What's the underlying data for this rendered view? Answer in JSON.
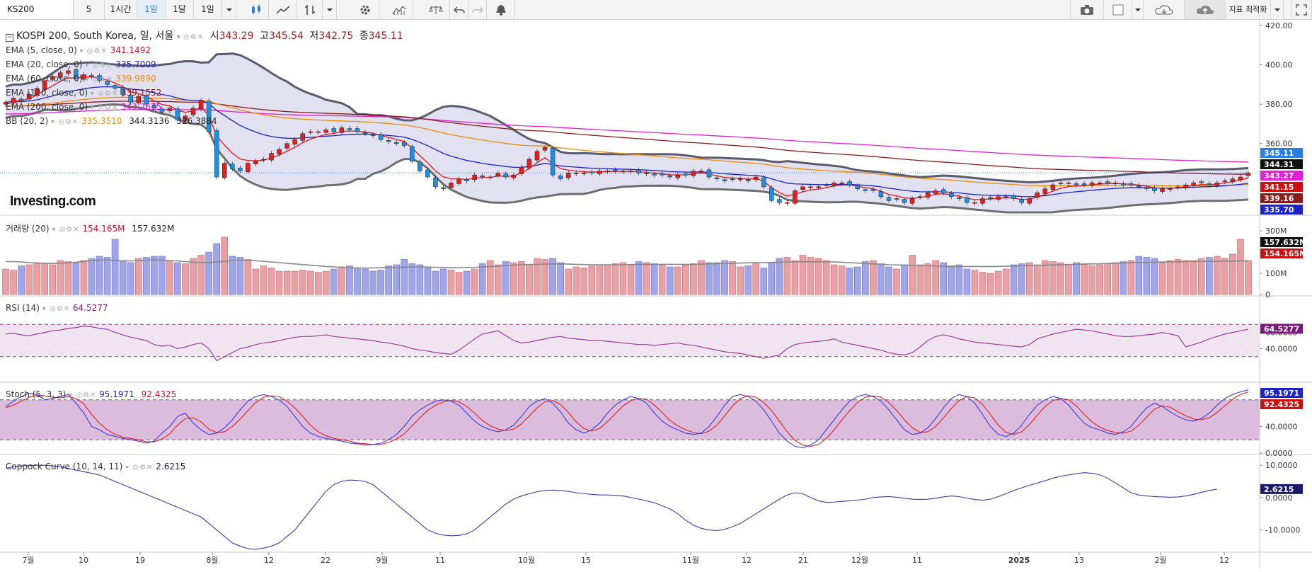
{
  "toolbar": {
    "symbol": "KS200",
    "interval_5": "5",
    "interval_1h": "1시간",
    "interval_1d": "1일",
    "interval_1mo": "1달",
    "interval_1d_b": "1일",
    "indicator_optimize": "지표 최적화"
  },
  "title": {
    "name": "KOSPI 200, South Korea, 일, 서울",
    "open_label": "시",
    "open": "343.29",
    "high_label": "고",
    "high": "345.54",
    "low_label": "저",
    "low": "342.75",
    "close_label": "종",
    "close": "345.11"
  },
  "legend": {
    "ema5": {
      "label": "EMA (5, close, 0)",
      "value": "341.1492",
      "color": "#c8102e"
    },
    "ema20": {
      "label": "EMA (20, close, 0)",
      "value": "335.7009",
      "color": "#1a22c8"
    },
    "ema60": {
      "label": "EMA (60, close, 0)",
      "value": "339.9890",
      "color": "#f08a00"
    },
    "ema120": {
      "label": "EMA (120, close, 0)",
      "value": "339.1552",
      "color": "#8b1a1a"
    },
    "ema200": {
      "label": "EMA (200, close, 0)",
      "value": "343.2675",
      "color": "#d21bc8"
    },
    "bb": {
      "label": "BB (20, 2)",
      "v1": "335.3510",
      "v2": "344.3136",
      "v3": "326.3884"
    },
    "volume": {
      "label": "거래량 (20)",
      "v1": "154.165M",
      "v2": "157.632M"
    },
    "rsi": {
      "label": "RSI (14)",
      "value": "64.5277"
    },
    "stoch": {
      "label": "Stoch (5, 3, 3)",
      "k": "95.1971",
      "d": "92.4325"
    },
    "coppock": {
      "label": "Coppock Curve (10, 14, 11)",
      "value": "2.6215"
    }
  },
  "logo": "Investing.com",
  "axes": {
    "price_ticks": [
      "420.00",
      "400.00",
      "380.00",
      "360.00"
    ],
    "volume_ticks": [
      "300M",
      "100M",
      "0"
    ],
    "rsi_ticks": [
      "60.0000",
      "40.0000"
    ],
    "stoch_ticks": [
      "40.0000",
      "0.0000"
    ],
    "coppock_ticks": [
      "10.0000",
      "0.0000",
      "-10.0000"
    ],
    "x_labels": [
      "7월",
      "10",
      "19",
      "8월",
      "12",
      "22",
      "9월",
      "11",
      "10월",
      "15",
      "11월",
      "12",
      "21",
      "12월",
      "11",
      "2025",
      "13",
      "2월",
      "12"
    ]
  },
  "price_badges": [
    {
      "text": "345.11",
      "bg": "#2a7de1",
      "fg": "#ffffff"
    },
    {
      "text": "344.31",
      "bg": "#111111",
      "fg": "#ffffff"
    },
    {
      "text": "343.27",
      "bg": "#e020d8",
      "fg": "#ffffff"
    },
    {
      "text": "341.15",
      "bg": "#cc1010",
      "fg": "#ffffff"
    },
    {
      "text": "339.16",
      "bg": "#8b1a1a",
      "fg": "#ffffff"
    },
    {
      "text": "335.70",
      "bg": "#1a22c8",
      "fg": "#ffffff"
    }
  ],
  "volume_badges": [
    {
      "text": "157.632M",
      "bg": "#111111",
      "fg": "#ffffff"
    },
    {
      "text": "154.165M",
      "bg": "#cc1010",
      "fg": "#ffffff"
    }
  ],
  "rsi_badge": {
    "text": "64.5277",
    "bg": "#7b1a7b",
    "fg": "#ffffff"
  },
  "stoch_badges": [
    {
      "text": "95.1971",
      "bg": "#1a22c8",
      "fg": "#ffffff"
    },
    {
      "text": "92.4325",
      "bg": "#cc1010",
      "fg": "#ffffff"
    }
  ],
  "coppock_badge": {
    "text": "2.6215",
    "bg": "#1a1a6e",
    "fg": "#ffffff"
  },
  "chart_data": {
    "type": "candlestick",
    "symbol": "KOSPI 200",
    "price_range": [
      325,
      420
    ],
    "closes": [
      381,
      383,
      382,
      385,
      388,
      392,
      394,
      396,
      397,
      393,
      395,
      394,
      392,
      390,
      388,
      385,
      381,
      384,
      380,
      378,
      376,
      378,
      372,
      374,
      378,
      382,
      366,
      343,
      350,
      347,
      346,
      350,
      351,
      352,
      355,
      357,
      360,
      362,
      365,
      366,
      366,
      367,
      366,
      368,
      367,
      366,
      365,
      364,
      362,
      361,
      360,
      359,
      351,
      346,
      343,
      338,
      337,
      340,
      342,
      341,
      344,
      343,
      343,
      345,
      343,
      344,
      348,
      352,
      356,
      358,
      344,
      342,
      345,
      345,
      345,
      345,
      346,
      346,
      346,
      346,
      346,
      345,
      345,
      344,
      344,
      343,
      344,
      344,
      346,
      346,
      343,
      342,
      341,
      342,
      342,
      341,
      343,
      338,
      331,
      330,
      330,
      336,
      338,
      338,
      338,
      339,
      340,
      340,
      339,
      337,
      336,
      336,
      333,
      331,
      332,
      330,
      332,
      333,
      335,
      336,
      335,
      333,
      332,
      330,
      330,
      332,
      332,
      333,
      333,
      332,
      330,
      332,
      335,
      337,
      339,
      340,
      340,
      339,
      339,
      340,
      340,
      340,
      340,
      339,
      339,
      338,
      337,
      336,
      337,
      337,
      338,
      339,
      340,
      340,
      339,
      340,
      341,
      342,
      343,
      345
    ],
    "volume_range": [
      0,
      300
    ],
    "volume": [
      120,
      115,
      135,
      140,
      150,
      145,
      140,
      160,
      155,
      150,
      160,
      170,
      180,
      175,
      260,
      160,
      150,
      170,
      175,
      180,
      180,
      160,
      150,
      145,
      170,
      185,
      200,
      240,
      270,
      180,
      175,
      165,
      120,
      135,
      125,
      110,
      110,
      110,
      115,
      110,
      105,
      110,
      120,
      130,
      135,
      125,
      120,
      110,
      115,
      135,
      140,
      165,
      145,
      140,
      125,
      110,
      120,
      115,
      105,
      110,
      120,
      145,
      160,
      140,
      155,
      150,
      155,
      140,
      170,
      165,
      170,
      150,
      120,
      130,
      125,
      135,
      135,
      140,
      145,
      150,
      140,
      155,
      150,
      145,
      140,
      130,
      130,
      140,
      145,
      160,
      150,
      150,
      160,
      155,
      130,
      135,
      150,
      125,
      150,
      170,
      175,
      160,
      185,
      175,
      170,
      160,
      140,
      135,
      125,
      130,
      155,
      160,
      145,
      130,
      120,
      140,
      185,
      140,
      145,
      160,
      150,
      135,
      140,
      120,
      115,
      105,
      100,
      110,
      120,
      140,
      145,
      150,
      140,
      160,
      155,
      150,
      140,
      150,
      145,
      135,
      140,
      145,
      150,
      155,
      160,
      180,
      175,
      170,
      150,
      160,
      165,
      160,
      160,
      170,
      175,
      180,
      170,
      190,
      260,
      160
    ],
    "volume_ma": [
      155,
      155,
      153,
      150,
      148,
      147,
      146,
      147,
      149,
      152,
      156,
      160,
      162,
      163,
      160,
      158,
      158,
      160,
      161,
      163,
      162,
      160,
      158,
      155,
      152,
      150,
      151,
      153,
      156,
      160,
      162,
      162,
      159,
      156,
      153,
      150,
      147,
      144,
      141,
      138,
      135,
      132,
      130,
      128,
      126,
      125,
      125,
      125,
      126,
      127,
      128,
      129,
      130,
      130,
      129,
      128,
      127,
      126,
      126,
      127,
      128,
      130,
      132,
      134,
      136,
      138,
      140,
      141,
      142,
      143,
      144,
      144,
      143,
      142,
      141,
      140,
      140,
      140,
      140,
      140,
      141,
      142,
      142,
      142,
      142,
      142,
      142,
      142,
      142,
      143,
      144,
      145,
      146,
      147,
      148,
      149,
      150,
      150,
      151,
      152,
      153,
      154,
      154,
      154,
      154,
      154,
      153,
      152,
      150,
      148,
      146,
      144,
      142,
      140,
      139,
      138,
      137,
      136,
      135,
      134,
      133,
      132,
      132,
      132,
      132,
      132,
      132,
      132,
      133,
      134,
      135,
      136,
      137,
      138,
      139,
      140,
      141,
      142,
      143,
      144,
      145,
      146,
      147,
      148,
      149,
      150,
      151,
      152,
      153,
      154,
      154,
      155,
      155,
      156,
      156,
      157,
      157,
      157,
      158,
      158
    ],
    "rsi_range": [
      0,
      100
    ],
    "rsi": [
      58,
      59,
      57,
      56,
      58,
      60,
      62,
      63,
      65,
      66,
      68,
      67,
      65,
      64,
      60,
      57,
      54,
      52,
      50,
      45,
      43,
      44,
      40,
      42,
      45,
      47,
      40,
      25,
      30,
      35,
      40,
      42,
      45,
      47,
      48,
      50,
      52,
      54,
      55,
      55,
      56,
      57,
      55,
      54,
      53,
      52,
      51,
      50,
      48,
      47,
      45,
      43,
      40,
      38,
      37,
      35,
      34,
      33,
      38,
      45,
      52,
      58,
      60,
      62,
      56,
      50,
      47,
      48,
      50,
      52,
      54,
      55,
      53,
      52,
      51,
      50,
      50,
      49,
      48,
      47,
      46,
      45,
      45,
      44,
      45,
      46,
      47,
      45,
      44,
      42,
      40,
      38,
      36,
      35,
      34,
      32,
      30,
      28,
      30,
      32,
      40,
      45,
      47,
      48,
      49,
      50,
      52,
      48,
      46,
      44,
      42,
      40,
      38,
      35,
      33,
      32,
      35,
      42,
      50,
      55,
      57,
      55,
      52,
      50,
      48,
      47,
      46,
      45,
      44,
      43,
      42,
      45,
      52,
      55,
      58,
      60,
      62,
      64,
      63,
      62,
      60,
      58,
      56,
      55,
      55,
      56,
      57,
      58,
      60,
      58,
      56,
      42,
      45,
      48,
      52,
      55,
      58,
      60,
      62,
      64
    ],
    "stoch_range": [
      0,
      100
    ],
    "stoch_k": [
      70,
      78,
      85,
      90,
      88,
      80,
      82,
      85,
      88,
      75,
      60,
      40,
      35,
      28,
      25,
      22,
      20,
      18,
      15,
      18,
      30,
      40,
      55,
      60,
      45,
      35,
      28,
      30,
      38,
      50,
      65,
      78,
      85,
      88,
      85,
      80,
      70,
      55,
      40,
      30,
      25,
      22,
      20,
      18,
      15,
      14,
      12,
      13,
      15,
      20,
      28,
      40,
      55,
      65,
      72,
      78,
      80,
      78,
      72,
      60,
      48,
      40,
      35,
      32,
      35,
      42,
      55,
      70,
      78,
      82,
      75,
      62,
      45,
      35,
      30,
      35,
      45,
      60,
      72,
      80,
      85,
      82,
      75,
      60,
      48,
      40,
      35,
      30,
      28,
      30,
      40,
      55,
      72,
      85,
      88,
      85,
      78,
      65,
      48,
      30,
      18,
      10,
      8,
      12,
      20,
      35,
      50,
      65,
      78,
      85,
      88,
      85,
      78,
      65,
      50,
      35,
      28,
      30,
      38,
      52,
      68,
      82,
      88,
      85,
      75,
      58,
      40,
      28,
      25,
      30,
      42,
      58,
      72,
      80,
      85,
      82,
      72,
      58,
      45,
      38,
      35,
      30,
      28,
      32,
      40,
      55,
      68,
      75,
      70,
      62,
      55,
      50,
      48,
      52,
      60,
      72,
      82,
      88,
      92,
      95
    ],
    "stoch_d": [
      68,
      72,
      78,
      84,
      87,
      86,
      84,
      83,
      85,
      82,
      74,
      58,
      45,
      35,
      28,
      24,
      22,
      20,
      17,
      17,
      21,
      29,
      42,
      52,
      53,
      47,
      36,
      31,
      32,
      40,
      51,
      64,
      76,
      84,
      86,
      85,
      78,
      68,
      55,
      42,
      32,
      26,
      22,
      20,
      18,
      15,
      14,
      13,
      13,
      16,
      21,
      29,
      41,
      53,
      64,
      72,
      77,
      79,
      77,
      70,
      60,
      49,
      41,
      36,
      34,
      36,
      44,
      56,
      68,
      77,
      79,
      73,
      61,
      47,
      37,
      33,
      37,
      47,
      59,
      71,
      79,
      82,
      81,
      72,
      61,
      49,
      41,
      35,
      31,
      29,
      33,
      42,
      56,
      71,
      82,
      86,
      84,
      76,
      64,
      48,
      32,
      19,
      12,
      10,
      13,
      22,
      35,
      50,
      64,
      76,
      84,
      86,
      84,
      76,
      64,
      50,
      38,
      31,
      32,
      40,
      53,
      67,
      79,
      85,
      83,
      73,
      58,
      42,
      31,
      28,
      32,
      43,
      57,
      70,
      79,
      82,
      80,
      71,
      58,
      47,
      39,
      34,
      31,
      30,
      33,
      42,
      54,
      66,
      71,
      69,
      62,
      56,
      51,
      50,
      53,
      61,
      71,
      81,
      88,
      92
    ],
    "coppock_range": [
      -16,
      12
    ],
    "coppock": [
      9,
      9.5,
      9.8,
      9.9,
      10,
      10,
      9.8,
      9.5,
      9,
      8.5,
      8,
      7.5,
      7,
      6,
      5,
      4,
      3,
      2,
      1,
      0,
      -1,
      -2,
      -3,
      -4,
      -5,
      -6,
      -8,
      -10,
      -12,
      -14,
      -15,
      -15.8,
      -16,
      -15.6,
      -15,
      -14,
      -12,
      -10,
      -7,
      -4,
      -1,
      2,
      4,
      5,
      5.4,
      5.3,
      5,
      4,
      2,
      0,
      -2,
      -4,
      -6,
      -8,
      -10,
      -11,
      -11.6,
      -11.8,
      -11.7,
      -11.2,
      -10,
      -8,
      -6,
      -4,
      -2,
      -0.5,
      0.5,
      1.2,
      1.8,
      2.2,
      2.3,
      2.2,
      1.9,
      1.5,
      1.2,
      1,
      0.8,
      0.8,
      0.7,
      0.5,
      0,
      -0.5,
      -1,
      -1.6,
      -2.5,
      -3.5,
      -5,
      -7,
      -8.5,
      -9.5,
      -10,
      -10.2,
      -9.8,
      -9,
      -8,
      -6.5,
      -5,
      -3.5,
      -2,
      -0.5,
      0.8,
      1.5,
      1.2,
      0,
      -1,
      -1.5,
      -1.4,
      -1.2,
      -1,
      -0.8,
      -0.5,
      0,
      0.2,
      0.3,
      0.1,
      -0.2,
      -0.5,
      -0.6,
      -0.5,
      -0.2,
      0.2,
      0.5,
      0.3,
      -0.2,
      -0.6,
      -0.8,
      -0.5,
      0.3,
      1.2,
      2.2,
      3,
      3.8,
      4.5,
      5.2,
      6,
      6.6,
      7,
      7.4,
      7.7,
      7.5,
      7,
      6,
      4.5,
      3,
      1.5,
      0.8,
      0.5,
      0.3,
      0.2,
      0.1,
      0.2,
      0.5,
      1,
      1.6,
      2.2,
      2.6
    ]
  }
}
